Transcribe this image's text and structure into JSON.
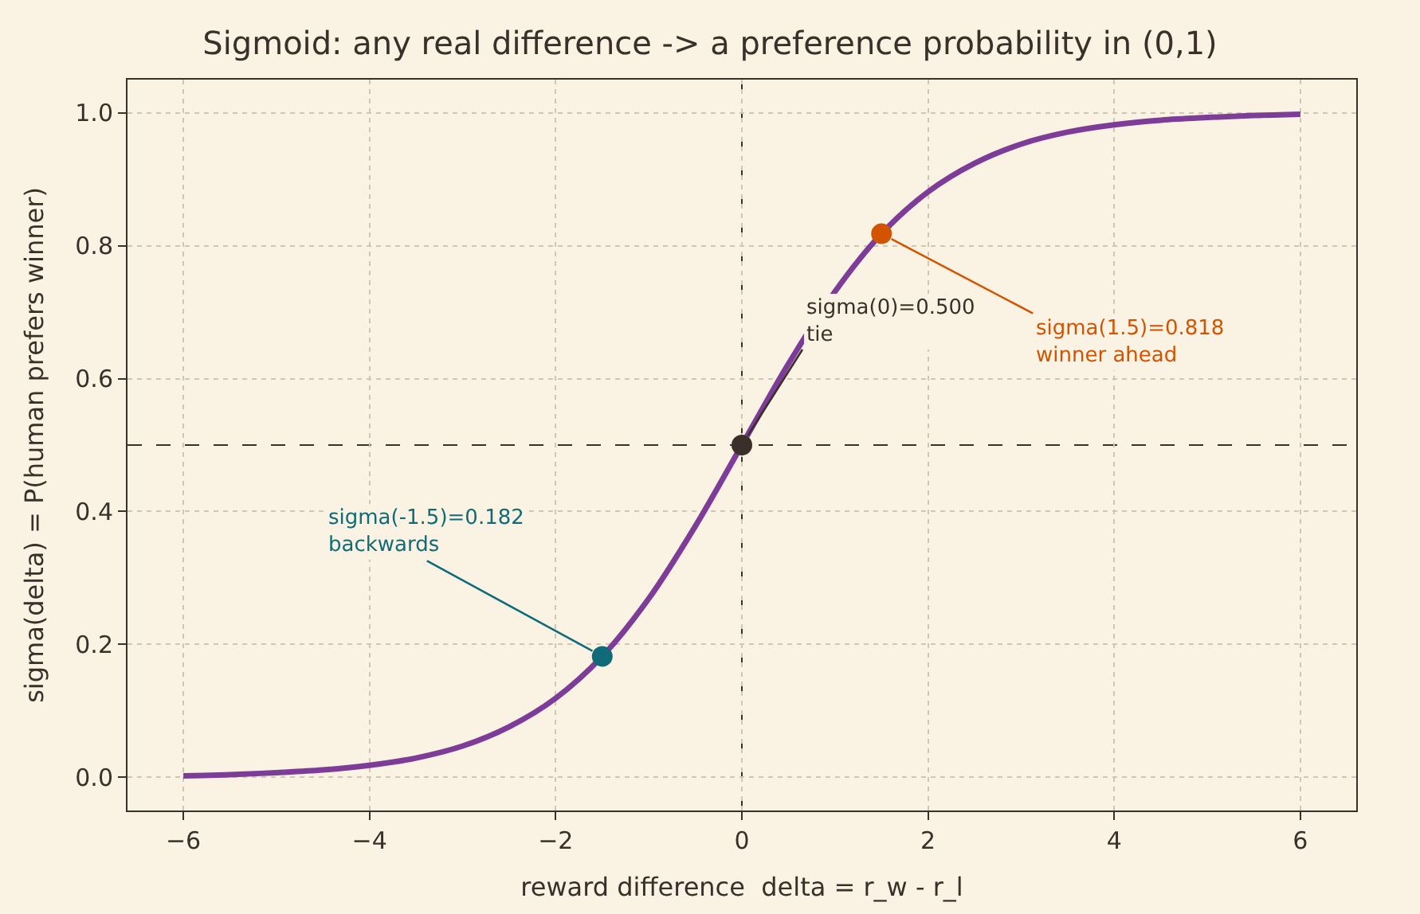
{
  "chart_data": {
    "type": "line",
    "title": "Sigmoid: any real difference -> a preference probability in (0,1)",
    "xlabel": "reward difference  delta = r_w - r_l",
    "ylabel": "sigma(delta) = P(human prefers winner)",
    "series": [
      {
        "color": "#7d3c98",
        "x": [
          -6,
          -5.5,
          -5,
          -4.5,
          -4,
          -3.5,
          -3,
          -2.5,
          -2,
          -1.5,
          -1,
          -0.5,
          0,
          0.5,
          1,
          1.5,
          2,
          2.5,
          3,
          3.5,
          4,
          4.5,
          5,
          5.5,
          6
        ],
        "values": [
          0.002,
          0.004,
          0.007,
          0.011,
          0.018,
          0.029,
          0.047,
          0.076,
          0.119,
          0.182,
          0.269,
          0.378,
          0.5,
          0.622,
          0.731,
          0.818,
          0.881,
          0.924,
          0.953,
          0.971,
          0.982,
          0.989,
          0.993,
          0.996,
          0.998
        ]
      },
      {
        "type": "scatter",
        "x": [
          -1.5,
          0,
          1.5
        ],
        "values": [
          0.182,
          0.5,
          0.818
        ],
        "colors": [
          "#0f6b78",
          "#3b2f2a",
          "#d35400"
        ]
      }
    ],
    "annotations": [
      {
        "text": "sigma(-1.5)=0.182\nbackwards",
        "x": -1.5,
        "y": 0.182
      },
      {
        "text": "sigma(0)=0.500\ntie",
        "x": 0,
        "y": 0.5
      },
      {
        "text": "sigma(1.5)=0.818\nwinner ahead",
        "x": 1.5,
        "y": 0.818
      }
    ],
    "ref_lines": [
      {
        "axis": "x",
        "value": 0,
        "color": "#3b2f2a",
        "line_style": "dashed"
      },
      {
        "axis": "y",
        "value": 0.5,
        "color": "#3b2f2a",
        "line_style": "dashed"
      }
    ],
    "xlim": [
      -6.6,
      6.6
    ],
    "ylim": [
      -0.05,
      1.05
    ],
    "xticks": [
      {
        "value": -6,
        "label": "−6"
      },
      {
        "value": -4,
        "label": "−4"
      },
      {
        "value": -2,
        "label": "−2"
      },
      0,
      2,
      4,
      6
    ],
    "yticks": [
      {
        "value": 0,
        "label": "0.0"
      },
      {
        "value": 0.2,
        "label": "0.2"
      },
      {
        "value": 0.4,
        "label": "0.4"
      },
      {
        "value": 0.6,
        "label": "0.6"
      },
      {
        "value": 0.8,
        "label": "0.8"
      },
      {
        "value": 1,
        "label": "1.0"
      }
    ],
    "grid": true
  }
}
